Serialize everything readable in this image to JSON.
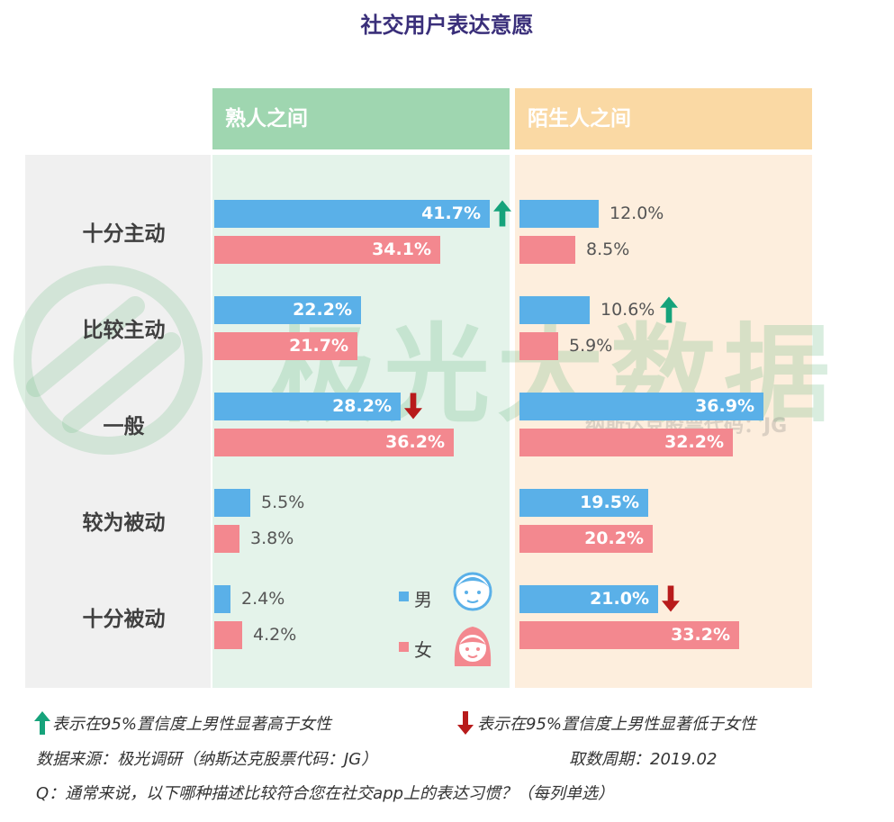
{
  "title": "社交用户表达意愿",
  "panels": [
    {
      "label": "熟人之间",
      "head_color": "#9fd6b0",
      "bg_color": "#e4f3ea"
    },
    {
      "label": "陌生人之间",
      "head_color": "#fad9a4",
      "bg_color": "#fdeedd"
    }
  ],
  "colors": {
    "male": "#5ab0e8",
    "female": "#f3888f",
    "up_arrow": "#16a37b",
    "down_arrow": "#b81b1b"
  },
  "legend": {
    "male": "男",
    "female": "女"
  },
  "chart_data": [
    {
      "type": "bar",
      "title": "熟人之间",
      "categories": [
        "十分主动",
        "比较主动",
        "一般",
        "较为被动",
        "十分被动"
      ],
      "series": [
        {
          "name": "男",
          "values": [
            41.7,
            22.2,
            28.2,
            5.5,
            2.4
          ],
          "labels": [
            "41.7%",
            "22.2%",
            "28.2%",
            "5.5%",
            "2.4%"
          ]
        },
        {
          "name": "女",
          "values": [
            34.1,
            21.7,
            36.2,
            3.8,
            4.2
          ],
          "labels": [
            "34.1%",
            "21.7%",
            "36.2%",
            "3.8%",
            "4.2%"
          ]
        }
      ],
      "significance": [
        "up",
        "",
        "down",
        "",
        ""
      ]
    },
    {
      "type": "bar",
      "title": "陌生人之间",
      "categories": [
        "十分主动",
        "比较主动",
        "一般",
        "较为被动",
        "十分被动"
      ],
      "series": [
        {
          "name": "男",
          "values": [
            12.0,
            10.6,
            36.9,
            19.5,
            21.0
          ],
          "labels": [
            "12.0%",
            "10.6%",
            "36.9%",
            "19.5%",
            "21.0%"
          ]
        },
        {
          "name": "女",
          "values": [
            8.5,
            5.9,
            32.2,
            20.2,
            33.2
          ],
          "labels": [
            "8.5%",
            "5.9%",
            "32.2%",
            "20.2%",
            "33.2%"
          ]
        }
      ],
      "significance": [
        "",
        "up",
        "",
        "",
        "down"
      ]
    }
  ],
  "notes": {
    "up": "表示在95%置信度上男性显著高于女性",
    "down": "表示在95%置信度上男性显著低于女性",
    "source": "数据来源：极光调研（纳斯达克股票代码：JG）",
    "period": "取数周期：2019.02",
    "question": "Q：通常来说，以下哪种描述比较符合您在社交app上的表达习惯？（每列单选）"
  },
  "watermark": {
    "brand": "极光大数据",
    "sub": "纳斯达克股票代码：JG"
  }
}
